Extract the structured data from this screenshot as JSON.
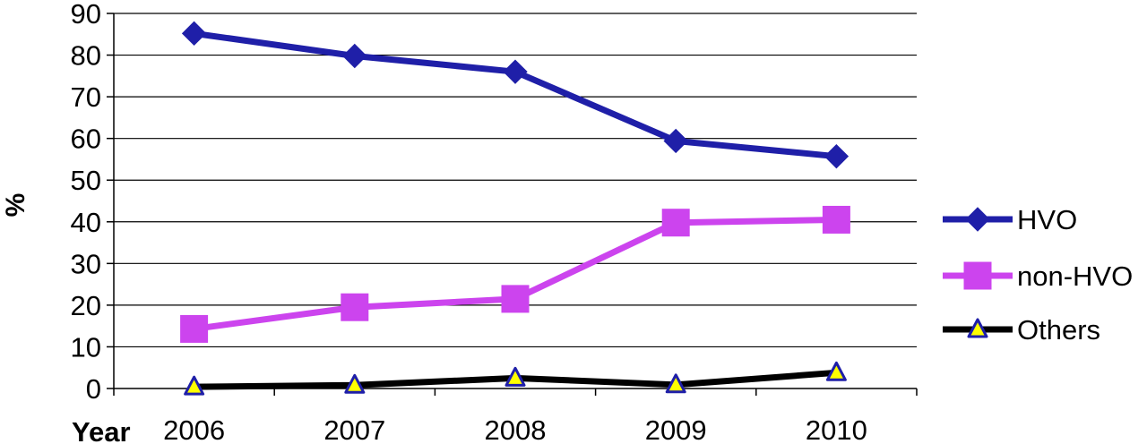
{
  "chart_data": {
    "type": "line",
    "title": "",
    "xlabel": "Year",
    "ylabel": "%",
    "categories": [
      "2006",
      "2007",
      "2008",
      "2009",
      "2010"
    ],
    "ylim": [
      0,
      90
    ],
    "yticks": [
      0,
      10,
      20,
      30,
      40,
      50,
      60,
      70,
      80,
      90
    ],
    "grid": true,
    "legend_position": "right",
    "series": [
      {
        "name": "HVO",
        "values": [
          85.2,
          79.8,
          76.0,
          59.4,
          55.7
        ],
        "color": "#1f1fa8",
        "marker": "diamond"
      },
      {
        "name": "non-HVO",
        "values": [
          14.3,
          19.5,
          21.5,
          39.8,
          40.5
        ],
        "color": "#cc44ee",
        "marker": "square"
      },
      {
        "name": "Others",
        "values": [
          0.4,
          0.8,
          2.5,
          0.9,
          3.8
        ],
        "color": "#000000",
        "marker": "triangle",
        "marker_fill": "#ffff00",
        "marker_edge": "#1f1fa8"
      }
    ]
  }
}
